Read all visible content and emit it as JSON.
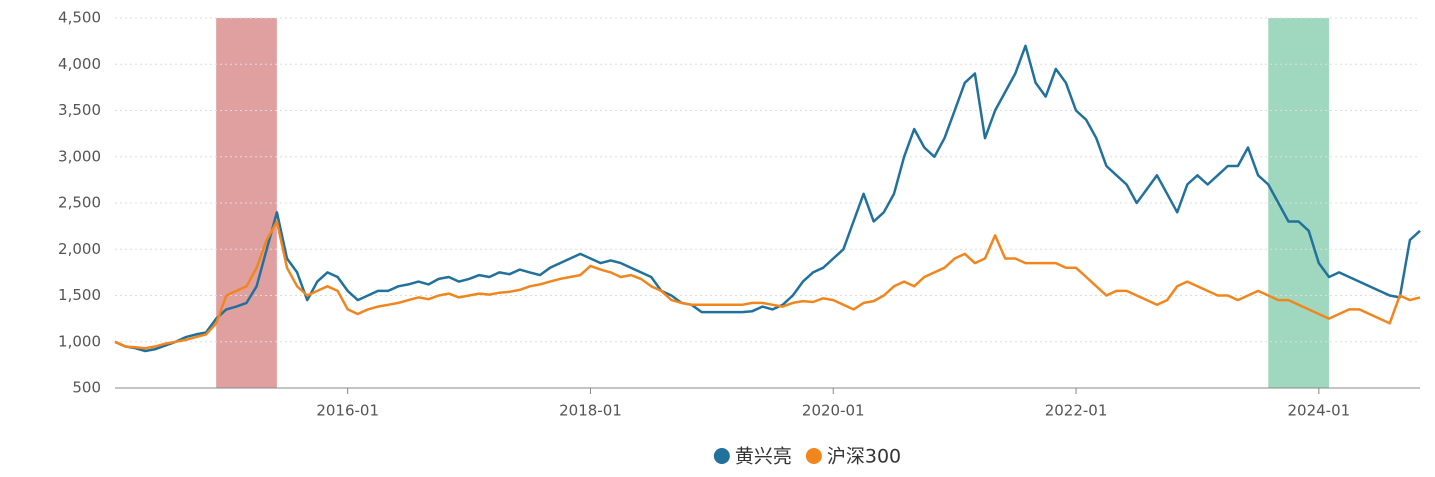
{
  "chart_data": {
    "type": "line",
    "x": [
      "2014-02",
      "2014-03",
      "2014-04",
      "2014-05",
      "2014-06",
      "2014-07",
      "2014-08",
      "2014-09",
      "2014-10",
      "2014-11",
      "2014-12",
      "2015-01",
      "2015-02",
      "2015-03",
      "2015-04",
      "2015-05",
      "2015-06",
      "2015-07",
      "2015-08",
      "2015-09",
      "2015-10",
      "2015-11",
      "2015-12",
      "2016-01",
      "2016-02",
      "2016-03",
      "2016-04",
      "2016-05",
      "2016-06",
      "2016-07",
      "2016-08",
      "2016-09",
      "2016-10",
      "2016-11",
      "2016-12",
      "2017-01",
      "2017-02",
      "2017-03",
      "2017-04",
      "2017-05",
      "2017-06",
      "2017-07",
      "2017-08",
      "2017-09",
      "2017-10",
      "2017-11",
      "2017-12",
      "2018-01",
      "2018-02",
      "2018-03",
      "2018-04",
      "2018-05",
      "2018-06",
      "2018-07",
      "2018-08",
      "2018-09",
      "2018-10",
      "2018-11",
      "2018-12",
      "2019-01",
      "2019-02",
      "2019-03",
      "2019-04",
      "2019-05",
      "2019-06",
      "2019-07",
      "2019-08",
      "2019-09",
      "2019-10",
      "2019-11",
      "2019-12",
      "2020-01",
      "2020-02",
      "2020-03",
      "2020-04",
      "2020-05",
      "2020-06",
      "2020-07",
      "2020-08",
      "2020-09",
      "2020-10",
      "2020-11",
      "2020-12",
      "2021-01",
      "2021-02",
      "2021-03",
      "2021-04",
      "2021-05",
      "2021-06",
      "2021-07",
      "2021-08",
      "2021-09",
      "2021-10",
      "2021-11",
      "2021-12",
      "2022-01",
      "2022-02",
      "2022-03",
      "2022-04",
      "2022-05",
      "2022-06",
      "2022-07",
      "2022-08",
      "2022-09",
      "2022-10",
      "2022-11",
      "2022-12",
      "2023-01",
      "2023-02",
      "2023-03",
      "2023-04",
      "2023-05",
      "2023-06",
      "2023-07",
      "2023-08",
      "2023-09",
      "2023-10",
      "2023-11",
      "2023-12",
      "2024-01",
      "2024-02",
      "2024-03",
      "2024-04",
      "2024-05",
      "2024-06",
      "2024-07",
      "2024-08",
      "2024-09",
      "2024-10",
      "2024-11"
    ],
    "series": [
      {
        "name": "黄兴亮",
        "color": "#21719c",
        "values": [
          1000,
          950,
          930,
          900,
          920,
          960,
          1000,
          1050,
          1080,
          1100,
          1250,
          1350,
          1380,
          1420,
          1600,
          2000,
          2400,
          1900,
          1750,
          1450,
          1650,
          1750,
          1700,
          1550,
          1450,
          1500,
          1550,
          1550,
          1600,
          1620,
          1650,
          1620,
          1680,
          1700,
          1650,
          1680,
          1720,
          1700,
          1750,
          1730,
          1780,
          1750,
          1720,
          1800,
          1850,
          1900,
          1950,
          1900,
          1850,
          1880,
          1850,
          1800,
          1750,
          1700,
          1550,
          1500,
          1420,
          1400,
          1320,
          1320,
          1320,
          1320,
          1320,
          1330,
          1380,
          1350,
          1400,
          1500,
          1650,
          1750,
          1800,
          1900,
          2000,
          2300,
          2600,
          2300,
          2400,
          2600,
          3000,
          3300,
          3100,
          3000,
          3200,
          3500,
          3800,
          3900,
          3200,
          3500,
          3700,
          3900,
          4200,
          3800,
          3650,
          3950,
          3800,
          3500,
          3400,
          3200,
          2900,
          2800,
          2700,
          2500,
          2650,
          2800,
          2600,
          2400,
          2700,
          2800,
          2700,
          2800,
          2900,
          2900,
          3100,
          2800,
          2700,
          2500,
          2300,
          2300,
          2200,
          1850,
          1700,
          1750,
          1700,
          1650,
          1600,
          1550,
          1500,
          1480,
          2100,
          2200
        ]
      },
      {
        "name": "沪深300",
        "color": "#f0861d",
        "values": [
          1000,
          950,
          940,
          930,
          950,
          980,
          1000,
          1020,
          1050,
          1080,
          1200,
          1500,
          1550,
          1600,
          1800,
          2100,
          2300,
          1800,
          1600,
          1500,
          1550,
          1600,
          1550,
          1350,
          1300,
          1350,
          1380,
          1400,
          1420,
          1450,
          1480,
          1460,
          1500,
          1520,
          1480,
          1500,
          1520,
          1510,
          1530,
          1540,
          1560,
          1600,
          1620,
          1650,
          1680,
          1700,
          1720,
          1820,
          1780,
          1750,
          1700,
          1720,
          1680,
          1600,
          1550,
          1450,
          1420,
          1400,
          1400,
          1400,
          1400,
          1400,
          1400,
          1420,
          1420,
          1400,
          1380,
          1420,
          1440,
          1430,
          1470,
          1450,
          1400,
          1350,
          1420,
          1440,
          1500,
          1600,
          1650,
          1600,
          1700,
          1750,
          1800,
          1900,
          1950,
          1850,
          1900,
          2150,
          1900,
          1900,
          1850,
          1850,
          1850,
          1850,
          1800,
          1800,
          1700,
          1600,
          1500,
          1550,
          1550,
          1500,
          1450,
          1400,
          1450,
          1600,
          1650,
          1600,
          1550,
          1500,
          1500,
          1450,
          1500,
          1550,
          1500,
          1450,
          1450,
          1400,
          1350,
          1300,
          1250,
          1300,
          1350,
          1350,
          1300,
          1250,
          1200,
          1500,
          1450,
          1480
        ]
      }
    ],
    "xlim": [
      "2014-02",
      "2024-11"
    ],
    "xticks": [
      "2016-01",
      "2018-01",
      "2020-01",
      "2022-01",
      "2024-01"
    ],
    "ylim": [
      500,
      4500
    ],
    "yticks": [
      500,
      {
        "value": 1000,
        "label": "1,000"
      },
      {
        "value": 1500,
        "label": "1,500"
      },
      {
        "value": 2000,
        "label": "2,000"
      },
      {
        "value": 2500,
        "label": "2,500"
      },
      {
        "value": 3000,
        "label": "3,000"
      },
      {
        "value": 3500,
        "label": "3,500"
      },
      {
        "value": 4000,
        "label": "4,000"
      },
      {
        "value": 4500,
        "label": "4,500"
      }
    ],
    "grid": true,
    "legend": "bottom",
    "highlights": [
      {
        "start": "2014-12",
        "end": "2015-06",
        "color": "#e0a0a0"
      },
      {
        "start": "2023-08",
        "end": "2024-02",
        "color": "#9fd8bf"
      }
    ]
  }
}
